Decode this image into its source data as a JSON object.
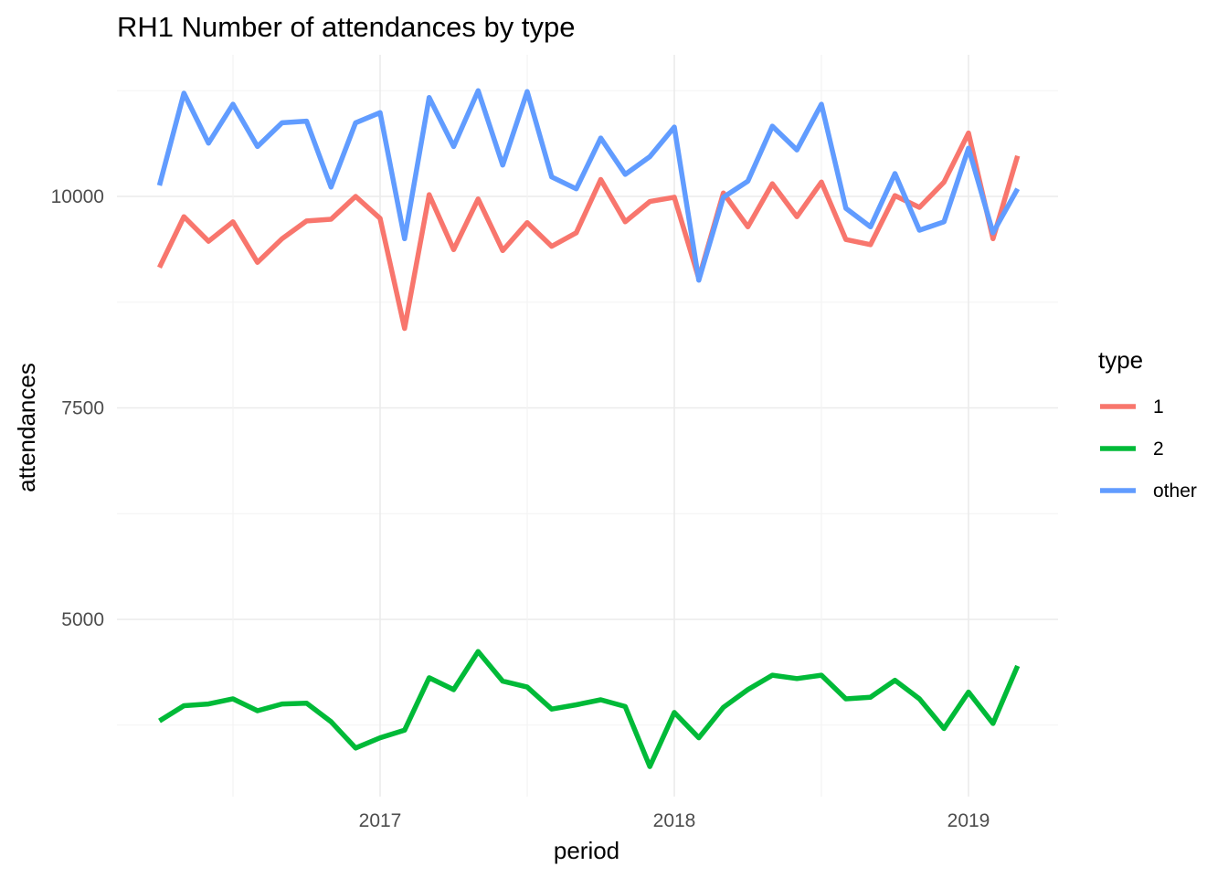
{
  "chart_data": {
    "type": "line",
    "title": "RH1 Number of attendances by type",
    "xlabel": "period",
    "ylabel": "attendances",
    "x_ticks": [
      "2017",
      "2018",
      "2019"
    ],
    "y_ticks": [
      "5000",
      "7500",
      "10000"
    ],
    "x": [
      "2016-04",
      "2016-05",
      "2016-06",
      "2016-07",
      "2016-08",
      "2016-09",
      "2016-10",
      "2016-11",
      "2016-12",
      "2017-01",
      "2017-02",
      "2017-03",
      "2017-04",
      "2017-05",
      "2017-06",
      "2017-07",
      "2017-08",
      "2017-09",
      "2017-10",
      "2017-11",
      "2017-12",
      "2018-01",
      "2018-02",
      "2018-03",
      "2018-04",
      "2018-05",
      "2018-06",
      "2018-07",
      "2018-08",
      "2018-09",
      "2018-10",
      "2018-11",
      "2018-12",
      "2019-01",
      "2019-02",
      "2019-03"
    ],
    "series": [
      {
        "name": "1",
        "color": "#F8766D",
        "values": [
          9160,
          9760,
          9470,
          9700,
          9220,
          9500,
          9710,
          9730,
          10000,
          9740,
          8440,
          10020,
          9370,
          9970,
          9360,
          9690,
          9410,
          9570,
          10200,
          9700,
          9940,
          9990,
          9030,
          10040,
          9640,
          10150,
          9760,
          10170,
          9490,
          9430,
          10010,
          9870,
          10170,
          10750,
          9500,
          10480
        ]
      },
      {
        "name": "2",
        "color": "#00BA38",
        "values": [
          3800,
          3980,
          4000,
          4060,
          3920,
          4000,
          4010,
          3790,
          3480,
          3600,
          3690,
          4310,
          4170,
          4620,
          4270,
          4200,
          3940,
          3990,
          4050,
          3970,
          3260,
          3900,
          3600,
          3960,
          4170,
          4340,
          4300,
          4340,
          4060,
          4080,
          4280,
          4060,
          3710,
          4140,
          3770,
          4450
        ]
      },
      {
        "name": "other",
        "color": "#619CFF",
        "values": [
          10130,
          11220,
          10630,
          11090,
          10590,
          10870,
          10890,
          10110,
          10870,
          10990,
          9500,
          11170,
          10590,
          11250,
          10370,
          11240,
          10230,
          10090,
          10690,
          10260,
          10470,
          10820,
          9010,
          9990,
          10180,
          10830,
          10550,
          11090,
          9860,
          9640,
          10270,
          9600,
          9700,
          10570,
          9570,
          10090
        ]
      }
    ],
    "legend": {
      "title": "type",
      "position": "right"
    },
    "ylim": [
      3200,
      11500
    ],
    "grid": true
  }
}
